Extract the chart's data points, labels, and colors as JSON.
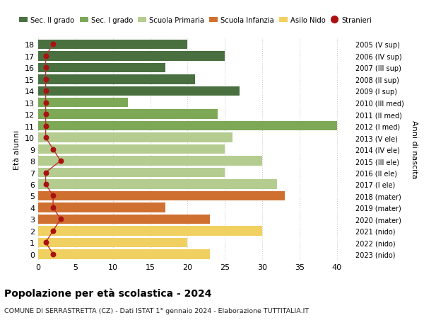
{
  "ages": [
    18,
    17,
    16,
    15,
    14,
    13,
    12,
    11,
    10,
    9,
    8,
    7,
    6,
    5,
    4,
    3,
    2,
    1,
    0
  ],
  "years": [
    "2005 (V sup)",
    "2006 (IV sup)",
    "2007 (III sup)",
    "2008 (II sup)",
    "2009 (I sup)",
    "2010 (III med)",
    "2011 (II med)",
    "2012 (I med)",
    "2013 (V ele)",
    "2014 (IV ele)",
    "2015 (III ele)",
    "2016 (II ele)",
    "2017 (I ele)",
    "2018 (mater)",
    "2019 (mater)",
    "2020 (mater)",
    "2021 (nido)",
    "2022 (nido)",
    "2023 (nido)"
  ],
  "values": [
    20,
    25,
    17,
    21,
    27,
    12,
    24,
    40,
    26,
    25,
    30,
    25,
    32,
    33,
    17,
    23,
    30,
    20,
    23
  ],
  "stranieri": [
    2,
    1,
    1,
    1,
    1,
    1,
    1,
    1,
    1,
    2,
    3,
    1,
    1,
    2,
    2,
    3,
    2,
    1,
    2
  ],
  "bar_colors": [
    "#4a7040",
    "#4a7040",
    "#4a7040",
    "#4a7040",
    "#4a7040",
    "#7da855",
    "#7da855",
    "#7da855",
    "#b5cc90",
    "#b5cc90",
    "#b5cc90",
    "#b5cc90",
    "#b5cc90",
    "#d07030",
    "#d07030",
    "#d07030",
    "#f0d060",
    "#f0d060",
    "#f0d060"
  ],
  "legend_labels": [
    "Sec. II grado",
    "Sec. I grado",
    "Scuola Primaria",
    "Scuola Infanzia",
    "Asilo Nido",
    "Stranieri"
  ],
  "legend_colors": [
    "#4a7040",
    "#7da855",
    "#b5cc90",
    "#d07030",
    "#f0d060",
    "#aa1111"
  ],
  "ylabel": "Età alunni",
  "ylabel_right": "Anni di nascita",
  "title": "Popolazione per età scolastica - 2024",
  "subtitle": "COMUNE DI SERRASTRETTA (CZ) - Dati ISTAT 1° gennaio 2024 - Elaborazione TUTTITALIA.IT",
  "xlim": [
    0,
    42
  ],
  "xticks": [
    0,
    5,
    10,
    15,
    20,
    25,
    30,
    35,
    40
  ],
  "grid_color": "#cccccc",
  "bg_color": "#ffffff",
  "stranieri_color": "#aa1111",
  "stranieri_line_color": "#bb3333"
}
